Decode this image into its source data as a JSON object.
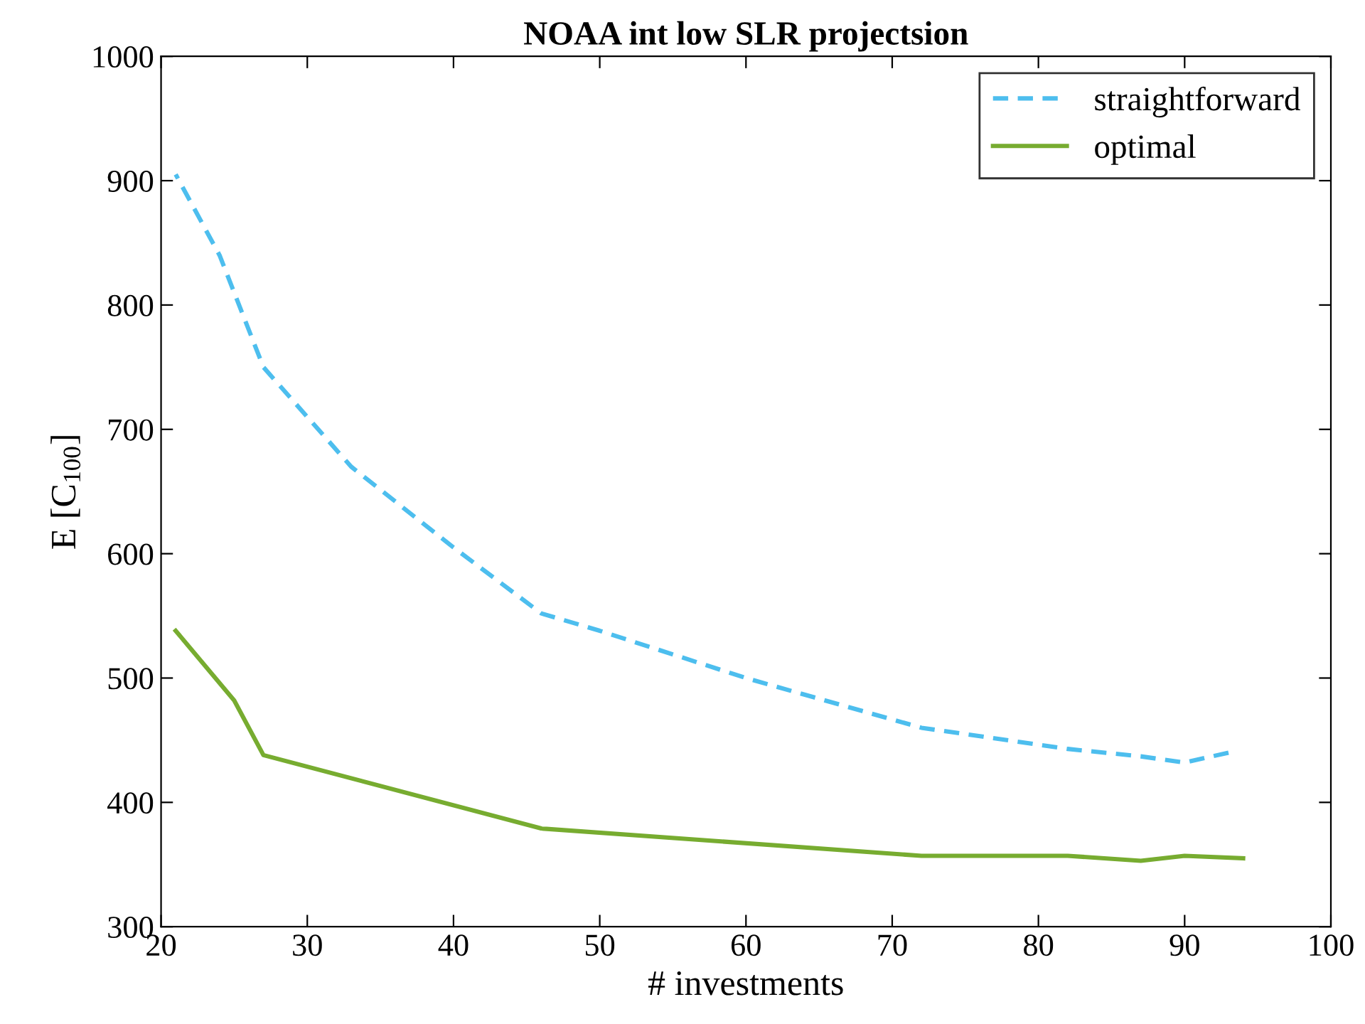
{
  "chart_data": {
    "type": "line",
    "title": "NOAA int low SLR projectsion",
    "xlabel": "# investments",
    "ylabel": "E [C$_{100}$]",
    "xlim": [
      20,
      100
    ],
    "xticks": [
      20,
      30,
      40,
      50,
      60,
      70,
      80,
      90,
      100
    ],
    "ylim": [
      300,
      1000
    ],
    "yticks": [
      300,
      400,
      500,
      600,
      700,
      800,
      900,
      1000
    ],
    "grid": false,
    "legend": "top right",
    "series": [
      {
        "name": "straightforward",
        "color": "#4dbeee",
        "line_style": "dashed",
        "x": [
          21,
          24,
          27,
          30,
          33,
          40,
          46,
          50,
          60,
          72,
          82,
          87,
          90,
          93
        ],
        "values": [
          905,
          840,
          750,
          710,
          670,
          605,
          552,
          538,
          500,
          460,
          443,
          437,
          432,
          440
        ]
      },
      {
        "name": "optimal",
        "color": "#77ac30",
        "line_style": "solid",
        "x": [
          21,
          25,
          27,
          46,
          72,
          82,
          87,
          90,
          94
        ],
        "values": [
          538,
          482,
          438,
          379,
          357,
          357,
          353,
          357,
          355
        ]
      }
    ]
  }
}
